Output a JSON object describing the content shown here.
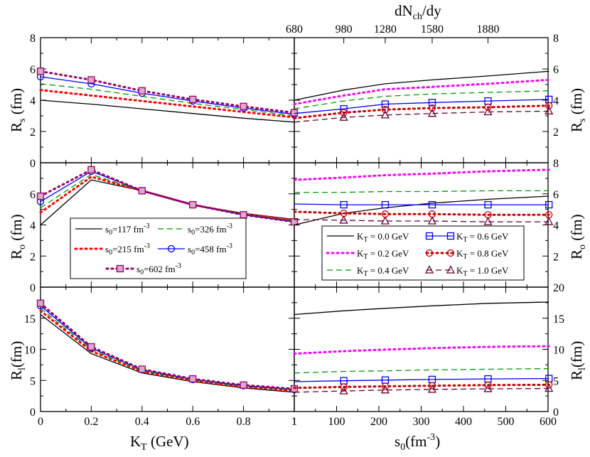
{
  "chart_data": [
    {
      "type": "line",
      "panel": "Rs vs KT",
      "xlabel": "K_T (GeV)",
      "ylabel": "R_s (fm)",
      "xlim": [
        0,
        1
      ],
      "ylim": [
        0,
        8
      ],
      "x": [
        0,
        0.2,
        0.4,
        0.6,
        0.8,
        1.0
      ],
      "series": [
        {
          "name": "s0=117 fm-3",
          "values": [
            4.0,
            3.75,
            3.45,
            3.15,
            2.85,
            2.6
          ]
        },
        {
          "name": "s0=215 fm-3",
          "values": [
            4.65,
            4.3,
            3.95,
            3.6,
            3.25,
            2.9
          ]
        },
        {
          "name": "s0=326 fm-3",
          "values": [
            5.05,
            4.7,
            4.25,
            3.8,
            3.4,
            3.0
          ]
        },
        {
          "name": "s0=458 fm-3",
          "values": [
            5.5,
            5.05,
            4.45,
            3.95,
            3.5,
            3.1
          ]
        },
        {
          "name": "s0=602 fm-3",
          "values": [
            5.85,
            5.3,
            4.6,
            4.05,
            3.6,
            3.2
          ]
        }
      ]
    },
    {
      "type": "line",
      "panel": "Ro vs KT",
      "xlabel": "K_T (GeV)",
      "ylabel": "R_o (fm)",
      "xlim": [
        0,
        1
      ],
      "ylim": [
        0,
        8
      ],
      "x": [
        0,
        0.2,
        0.4,
        0.6,
        0.8,
        1.0
      ],
      "series": [
        {
          "name": "s0=117 fm-3",
          "values": [
            4.0,
            6.9,
            6.2,
            5.3,
            4.75,
            4.35
          ]
        },
        {
          "name": "s0=215 fm-3",
          "values": [
            4.8,
            7.1,
            6.2,
            5.3,
            4.7,
            4.3
          ]
        },
        {
          "name": "s0=326 fm-3",
          "values": [
            5.1,
            7.25,
            6.2,
            5.3,
            4.7,
            4.25
          ]
        },
        {
          "name": "s0=458 fm-3",
          "values": [
            5.5,
            7.45,
            6.2,
            5.3,
            4.65,
            4.2
          ]
        },
        {
          "name": "s0=602 fm-3",
          "values": [
            5.85,
            7.55,
            6.2,
            5.3,
            4.65,
            4.2
          ]
        }
      ]
    },
    {
      "type": "line",
      "panel": "Rl vs KT",
      "xlabel": "K_T (GeV)",
      "ylabel": "R_l (fm)",
      "xlim": [
        0,
        1
      ],
      "ylim": [
        0,
        20
      ],
      "x": [
        0,
        0.2,
        0.4,
        0.6,
        0.8,
        1.0
      ],
      "series": [
        {
          "name": "s0=117 fm-3",
          "values": [
            15.6,
            9.3,
            6.2,
            4.8,
            3.8,
            3.1
          ]
        },
        {
          "name": "s0=215 fm-3",
          "values": [
            16.2,
            9.7,
            6.45,
            4.95,
            3.95,
            3.3
          ]
        },
        {
          "name": "s0=326 fm-3",
          "values": [
            16.6,
            9.95,
            6.55,
            5.05,
            4.05,
            3.45
          ]
        },
        {
          "name": "s0=458 fm-3",
          "values": [
            17.0,
            10.2,
            6.7,
            5.15,
            4.15,
            3.55
          ]
        },
        {
          "name": "s0=602 fm-3",
          "values": [
            17.4,
            10.4,
            6.8,
            5.25,
            4.25,
            3.65
          ]
        }
      ]
    },
    {
      "type": "line",
      "panel": "Rs vs s0",
      "xlabel": "s_0(fm^-3)",
      "x2label": "dN_ch/dy",
      "ylabel": "R_s (fm)",
      "xlim": [
        0,
        600
      ],
      "ylim": [
        0,
        8
      ],
      "x": [
        0,
        117,
        215,
        326,
        458,
        602
      ],
      "series": [
        {
          "name": "K_T = 0.0 GeV",
          "values": [
            4.0,
            4.65,
            5.05,
            5.3,
            5.55,
            5.85
          ]
        },
        {
          "name": "K_T = 0.2 GeV",
          "values": [
            3.75,
            4.3,
            4.7,
            4.85,
            5.05,
            5.3
          ]
        },
        {
          "name": "K_T = 0.4 GeV",
          "values": [
            3.45,
            3.95,
            4.25,
            4.4,
            4.5,
            4.6
          ]
        },
        {
          "name": "K_T = 0.6 GeV",
          "values": [
            3.15,
            3.45,
            3.75,
            3.85,
            3.95,
            4.05
          ]
        },
        {
          "name": "K_T = 0.8 GeV",
          "values": [
            2.85,
            3.2,
            3.4,
            3.5,
            3.55,
            3.65
          ]
        },
        {
          "name": "K_T = 1.0 GeV",
          "values": [
            2.6,
            2.9,
            3.05,
            3.15,
            3.25,
            3.3
          ]
        }
      ]
    },
    {
      "type": "line",
      "panel": "Ro vs s0",
      "xlabel": "s_0(fm^-3)",
      "ylabel": "R_o (fm)",
      "xlim": [
        0,
        600
      ],
      "ylim": [
        0,
        8
      ],
      "x": [
        0,
        117,
        215,
        326,
        458,
        602
      ],
      "series": [
        {
          "name": "K_T = 0.0 GeV",
          "values": [
            4.0,
            4.75,
            5.1,
            5.4,
            5.65,
            5.85
          ]
        },
        {
          "name": "K_T = 0.2 GeV",
          "values": [
            6.9,
            7.05,
            7.2,
            7.3,
            7.45,
            7.55
          ]
        },
        {
          "name": "K_T = 0.4 GeV",
          "values": [
            6.1,
            6.1,
            6.15,
            6.15,
            6.2,
            6.2
          ]
        },
        {
          "name": "K_T = 0.6 GeV",
          "values": [
            5.35,
            5.3,
            5.3,
            5.3,
            5.3,
            5.3
          ]
        },
        {
          "name": "K_T = 0.8 GeV",
          "values": [
            4.85,
            4.75,
            4.7,
            4.7,
            4.65,
            4.65
          ]
        },
        {
          "name": "K_T = 1.0 GeV",
          "values": [
            4.35,
            4.3,
            4.25,
            4.25,
            4.2,
            4.2
          ]
        }
      ]
    },
    {
      "type": "line",
      "panel": "Rl vs s0",
      "xlabel": "s_0(fm^-3)",
      "ylabel": "R_l (fm)",
      "xlim": [
        0,
        600
      ],
      "ylim": [
        0,
        20
      ],
      "x": [
        0,
        117,
        215,
        326,
        458,
        602
      ],
      "series": [
        {
          "name": "K_T = 0.0 GeV",
          "values": [
            15.6,
            16.2,
            16.6,
            17.0,
            17.4,
            17.6
          ]
        },
        {
          "name": "K_T = 0.2 GeV",
          "values": [
            9.3,
            9.7,
            9.95,
            10.2,
            10.4,
            10.5
          ]
        },
        {
          "name": "K_T = 0.4 GeV",
          "values": [
            6.2,
            6.45,
            6.55,
            6.7,
            6.8,
            6.9
          ]
        },
        {
          "name": "K_T = 0.6 GeV",
          "values": [
            4.8,
            4.95,
            5.05,
            5.15,
            5.25,
            5.3
          ]
        },
        {
          "name": "K_T = 0.8 GeV",
          "values": [
            3.8,
            3.95,
            4.05,
            4.15,
            4.25,
            4.3
          ]
        },
        {
          "name": "K_T = 1.0 GeV",
          "values": [
            3.1,
            3.3,
            3.45,
            3.55,
            3.65,
            3.7
          ]
        }
      ]
    }
  ],
  "axes": {
    "left_x_ticks": [
      "0",
      "0.2",
      "0.4",
      "0.6",
      "0.8",
      "1"
    ],
    "right_x_ticks": [
      "100",
      "200",
      "300",
      "400",
      "500",
      "600"
    ],
    "top_ticks": [
      "680",
      "980",
      "1280",
      "1580",
      "1880"
    ],
    "top_tick_s0": [
      0,
      117,
      215,
      326,
      458
    ],
    "rs_ticks": [
      "2",
      "4",
      "6",
      "8"
    ],
    "ro_ticks": [
      "0",
      "2",
      "4",
      "6"
    ],
    "ro_top_tick": "0",
    "ro_right_ticks": [
      "2",
      "4",
      "6",
      "8"
    ],
    "rl_ticks": [
      "0",
      "5",
      "10",
      "15"
    ],
    "rl_right_ticks": [
      "0",
      "5",
      "10",
      "15",
      "20"
    ],
    "x_label_left": "K",
    "x_label_left_sub": "T",
    "x_label_left_unit": " (GeV)",
    "x_label_right": "s",
    "x_label_right_sub": "0",
    "x_label_right_unit": "(fm",
    "x_label_right_sup": "-3",
    "x_label_right_close": ")",
    "top_label": "dN",
    "top_label_sub": "ch",
    "top_label_rest": "/dy",
    "rs_label": "R",
    "rs_sub": "s",
    "ro_label": "R",
    "ro_sub": "o",
    "rl_label": "R",
    "rl_sub": "l",
    "unit": " (fm)",
    "unit_rl": "(fm)"
  },
  "legend_s0": [
    {
      "label": "s",
      "sub": "0",
      "eq": "=117 fm",
      "sup": "-3"
    },
    {
      "label": "s",
      "sub": "0",
      "eq": "=326 fm",
      "sup": "-3"
    },
    {
      "label": "s",
      "sub": "0",
      "eq": "=215 fm",
      "sup": "-3"
    },
    {
      "label": "s",
      "sub": "0",
      "eq": "=458 fm",
      "sup": "-3"
    },
    {
      "label": "s",
      "sub": "0",
      "eq": "=602 fm",
      "sup": "-3"
    }
  ],
  "legend_kt": [
    {
      "label": "K",
      "sub": "T",
      "rest": " = 0.0 GeV"
    },
    {
      "label": "K",
      "sub": "T",
      "rest": " = 0.6 GeV"
    },
    {
      "label": "K",
      "sub": "T",
      "rest": " = 0.2 GeV"
    },
    {
      "label": "K",
      "sub": "T",
      "rest": " = 0.8 GeV"
    },
    {
      "label": "K",
      "sub": "T",
      "rest": " = 0.4 GeV"
    },
    {
      "label": "K",
      "sub": "T",
      "rest": " = 1.0 GeV"
    }
  ],
  "colors": {
    "black": "#000000",
    "red": "#ff0000",
    "green": "#009900",
    "blue": "#0000ff",
    "purple": "#990066",
    "magenta": "#ff00ff",
    "darkred": "#cc0000",
    "darkmaroon": "#660033"
  }
}
